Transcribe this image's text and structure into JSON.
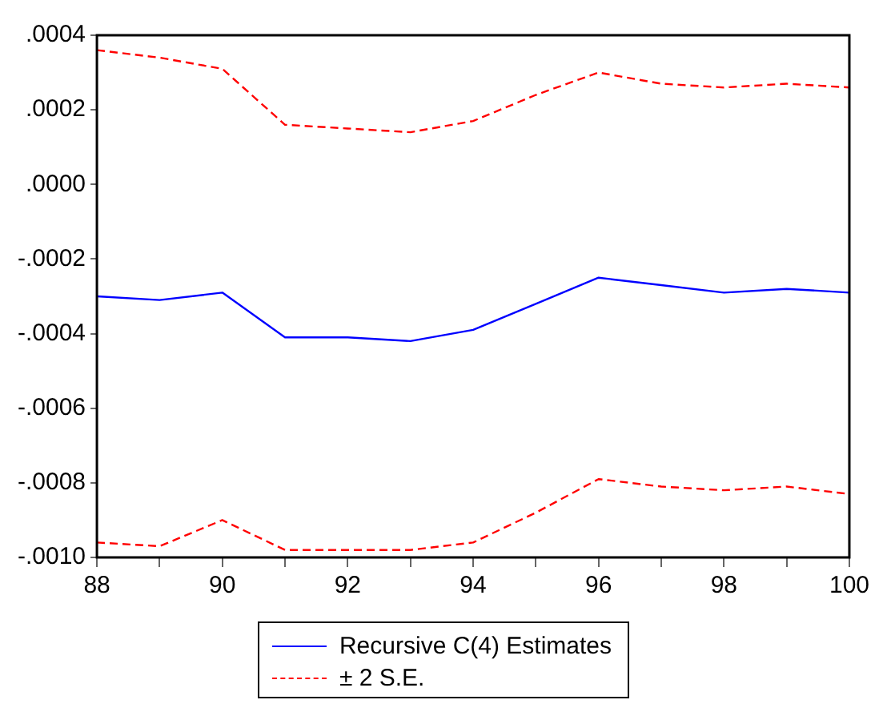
{
  "chart_data": {
    "type": "line",
    "x": [
      88,
      89,
      90,
      91,
      92,
      93,
      94,
      95,
      96,
      97,
      98,
      99,
      100
    ],
    "series": [
      {
        "name": "Recursive C(4) Estimates",
        "color": "#0000ff",
        "line_style": "solid",
        "values": [
          -0.0003,
          -0.00031,
          -0.00029,
          -0.00041,
          -0.00041,
          -0.00042,
          -0.00039,
          -0.00032,
          -0.00025,
          -0.00027,
          -0.00029,
          -0.00028,
          -0.00029
        ]
      },
      {
        "name": "± 2 S.E.",
        "color": "#ff0000",
        "line_style": "dashed",
        "values": [
          0.00036,
          0.00034,
          0.00031,
          0.00016,
          0.00015,
          0.00014,
          0.00017,
          0.00024,
          0.0003,
          0.00027,
          0.00026,
          0.00027,
          0.00026
        ]
      },
      {
        "color": "#ff0000",
        "line_style": "dashed",
        "values": [
          -0.00096,
          -0.00097,
          -0.0009,
          -0.00098,
          -0.00098,
          -0.00098,
          -0.00096,
          -0.00088,
          -0.00079,
          -0.00081,
          -0.00082,
          -0.00081,
          -0.00083
        ]
      }
    ],
    "xlim": [
      88,
      100
    ],
    "xticks": [
      88,
      {
        "value": 89,
        "label": null
      },
      90,
      {
        "value": 91,
        "label": null
      },
      92,
      {
        "value": 93,
        "label": null
      },
      94,
      {
        "value": 95,
        "label": null
      },
      96,
      {
        "value": 97,
        "label": null
      },
      98,
      {
        "value": 99,
        "label": null
      },
      100
    ],
    "ylim": [
      -0.001,
      0.0004
    ],
    "yticks": [
      {
        "value": -0.001,
        "label": "-.0010"
      },
      {
        "value": -0.0008,
        "label": "-.0008"
      },
      {
        "value": -0.0006,
        "label": "-.0006"
      },
      {
        "value": -0.0004,
        "label": "-.0004"
      },
      {
        "value": -0.0002,
        "label": "-.0002"
      },
      {
        "value": 0,
        "label": ".0000"
      },
      {
        "value": 0.0002,
        "label": ".0002"
      },
      {
        "value": 0.0004,
        "label": ".0004"
      }
    ],
    "grid": false,
    "legend": "bottom",
    "marker": "none"
  }
}
